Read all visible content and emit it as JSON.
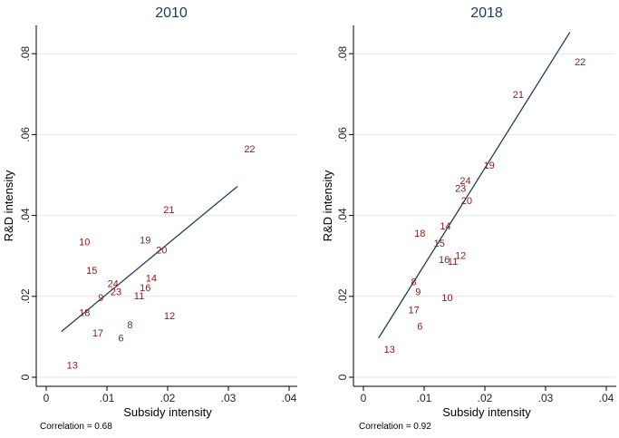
{
  "chart_data": [
    {
      "type": "scatter",
      "title": "2010",
      "xlabel": "Subsidy intensity",
      "ylabel": "R&D intensity",
      "xlim": [
        0,
        0.04
      ],
      "ylim": [
        0,
        0.087
      ],
      "xticks": [
        0,
        0.01,
        0.02,
        0.03,
        0.04
      ],
      "xtick_labels": [
        "0",
        ".01",
        ".02",
        ".03",
        ".04"
      ],
      "yticks": [
        0,
        0.02,
        0.04,
        0.06,
        0.08
      ],
      "ytick_labels": [
        "0",
        ".02",
        ".04",
        ".06",
        ".08"
      ],
      "grid": true,
      "note": "Correlation = 0.68",
      "points": [
        {
          "label": "22",
          "x": 0.0335,
          "y": 0.0565
        },
        {
          "label": "21",
          "x": 0.0202,
          "y": 0.0415
        },
        {
          "label": "10",
          "x": 0.0063,
          "y": 0.0335
        },
        {
          "label": "19",
          "x": 0.0163,
          "y": 0.034
        },
        {
          "label": "20",
          "x": 0.019,
          "y": 0.0315
        },
        {
          "label": "15",
          "x": 0.0075,
          "y": 0.0265
        },
        {
          "label": "14",
          "x": 0.0173,
          "y": 0.0245
        },
        {
          "label": "24",
          "x": 0.011,
          "y": 0.0232
        },
        {
          "label": "16",
          "x": 0.0163,
          "y": 0.0222
        },
        {
          "label": "23",
          "x": 0.0115,
          "y": 0.0212
        },
        {
          "label": "9",
          "x": 0.009,
          "y": 0.0197
        },
        {
          "label": "11",
          "x": 0.0153,
          "y": 0.0202
        },
        {
          "label": "18",
          "x": 0.0063,
          "y": 0.016
        },
        {
          "label": "12",
          "x": 0.0203,
          "y": 0.0152
        },
        {
          "label": "8",
          "x": 0.0138,
          "y": 0.013
        },
        {
          "label": "17",
          "x": 0.0085,
          "y": 0.011
        },
        {
          "label": "6",
          "x": 0.0123,
          "y": 0.0097
        },
        {
          "label": "13",
          "x": 0.0043,
          "y": 0.003
        }
      ],
      "fit_line": {
        "x": [
          0.0025,
          0.0315
        ],
        "y": [
          0.0113,
          0.0472
        ]
      }
    },
    {
      "type": "scatter",
      "title": "2018",
      "xlabel": "Subsidy intensity",
      "ylabel": "R&D intensity",
      "xlim": [
        0,
        0.04
      ],
      "ylim": [
        0,
        0.087
      ],
      "xticks": [
        0,
        0.01,
        0.02,
        0.03,
        0.04
      ],
      "xtick_labels": [
        "0",
        ".01",
        ".02",
        ".03",
        ".04"
      ],
      "yticks": [
        0,
        0.02,
        0.04,
        0.06,
        0.08
      ],
      "ytick_labels": [
        "0",
        ".02",
        ".04",
        ".06",
        ".08"
      ],
      "grid": true,
      "note": "Correlation = 0.92",
      "points": [
        {
          "label": "22",
          "x": 0.0357,
          "y": 0.078
        },
        {
          "label": "21",
          "x": 0.0255,
          "y": 0.07
        },
        {
          "label": "19",
          "x": 0.0207,
          "y": 0.0525
        },
        {
          "label": "24",
          "x": 0.0168,
          "y": 0.0487
        },
        {
          "label": "23",
          "x": 0.016,
          "y": 0.0467
        },
        {
          "label": "20",
          "x": 0.017,
          "y": 0.0437
        },
        {
          "label": "18",
          "x": 0.0093,
          "y": 0.0357
        },
        {
          "label": "14",
          "x": 0.0135,
          "y": 0.0375
        },
        {
          "label": "15",
          "x": 0.0125,
          "y": 0.0332
        },
        {
          "label": "12",
          "x": 0.016,
          "y": 0.0302
        },
        {
          "label": "16",
          "x": 0.0133,
          "y": 0.0292
        },
        {
          "label": "11",
          "x": 0.0147,
          "y": 0.0287
        },
        {
          "label": "8",
          "x": 0.0083,
          "y": 0.0237
        },
        {
          "label": "9",
          "x": 0.009,
          "y": 0.0212
        },
        {
          "label": "10",
          "x": 0.0138,
          "y": 0.0197
        },
        {
          "label": "17",
          "x": 0.0083,
          "y": 0.0167
        },
        {
          "label": "6",
          "x": 0.0093,
          "y": 0.0127
        },
        {
          "label": "13",
          "x": 0.0043,
          "y": 0.007
        }
      ],
      "fit_line": {
        "x": [
          0.0025,
          0.034
        ],
        "y": [
          0.0097,
          0.0853
        ]
      }
    }
  ]
}
